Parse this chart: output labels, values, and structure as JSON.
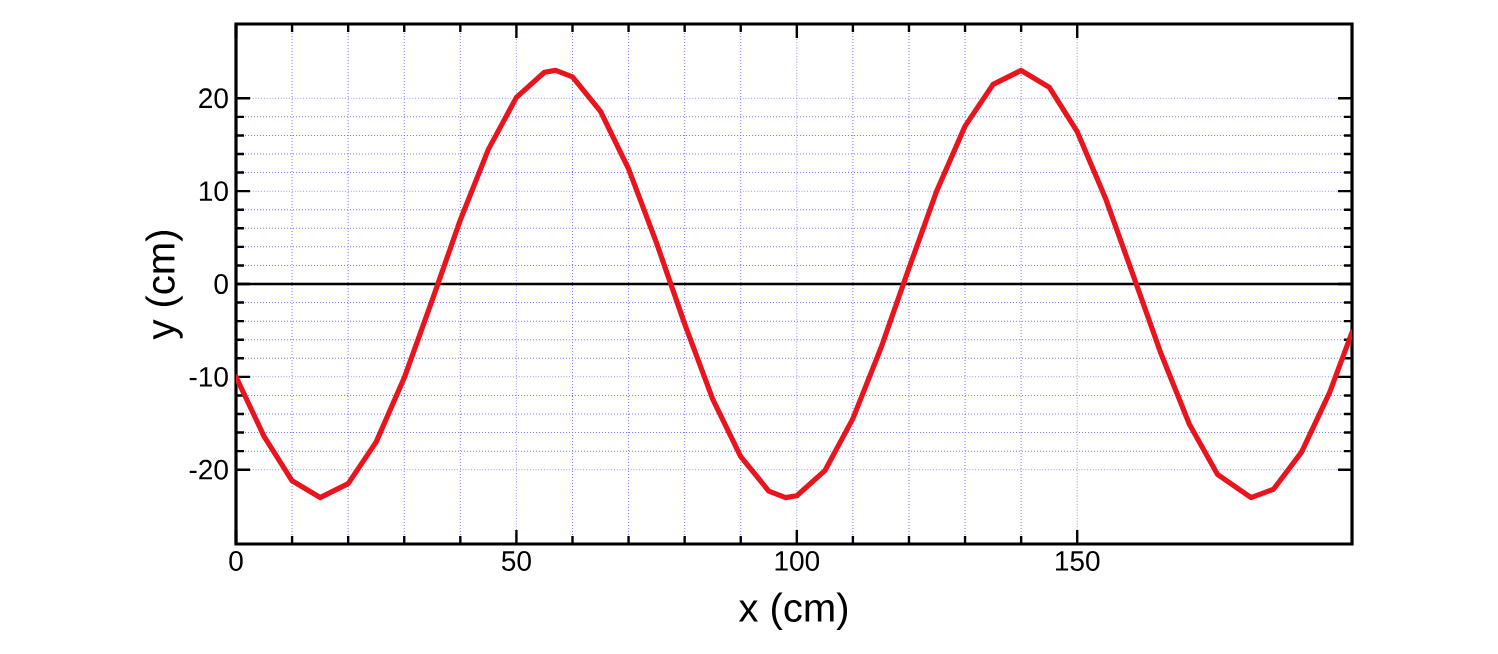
{
  "chart_data": {
    "type": "line",
    "xlabel": "x (cm)",
    "ylabel": "y (cm)",
    "xlim": [
      0,
      199
    ],
    "ylim": [
      -28,
      28
    ],
    "xticks": [
      0,
      50,
      100,
      150
    ],
    "yticks": [
      -20,
      -10,
      0,
      10,
      20
    ],
    "grid": true,
    "ref_lines": [
      {
        "axis": "y",
        "value": 0,
        "color": "#000000"
      }
    ],
    "series": [
      {
        "color": "#e8141e",
        "line_style": "solid",
        "marker": "none",
        "x": [
          0,
          5,
          10,
          15,
          20,
          25,
          30,
          35,
          40,
          45,
          50,
          55,
          57,
          60,
          65,
          70,
          75,
          80,
          85,
          90,
          95,
          98,
          100,
          105,
          110,
          115,
          120,
          125,
          130,
          135,
          140,
          145,
          150,
          155,
          160,
          165,
          170,
          175,
          181,
          185,
          190,
          195,
          199
        ],
        "values": [
          -10,
          -16.4,
          -21.2,
          -23,
          -21.5,
          -17.0,
          -10.1,
          -1.7,
          6.9,
          14.5,
          20.1,
          22.8,
          23,
          22.3,
          18.6,
          12.4,
          4.4,
          -4.3,
          -12.4,
          -18.6,
          -22.3,
          -23,
          -22.8,
          -20.1,
          -14.5,
          -6.9,
          1.7,
          10.1,
          17.0,
          21.5,
          23.0,
          21.2,
          16.4,
          9.3,
          0.9,
          -7.6,
          -15.1,
          -20.5,
          -23,
          -22.1,
          -18.1,
          -11.7,
          -5.2
        ]
      }
    ]
  }
}
